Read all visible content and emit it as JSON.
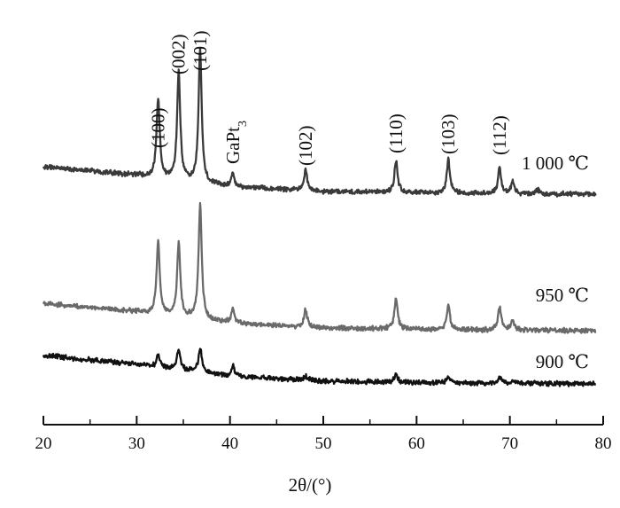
{
  "chart_data": {
    "type": "line",
    "xlabel": "2θ/(°)",
    "xlim": [
      20,
      80
    ],
    "x_ticks": [
      "20",
      "30",
      "40",
      "50",
      "60",
      "70",
      "80"
    ],
    "y_axis_visible": false,
    "baseline_relative_intensity": [
      [
        20,
        1.0
      ],
      [
        30,
        0.82
      ],
      [
        40,
        0.58
      ],
      [
        50,
        0.48
      ],
      [
        60,
        0.45
      ],
      [
        70,
        0.43
      ],
      [
        80,
        0.42
      ]
    ],
    "series": [
      {
        "name": "1 000 ℃",
        "color": "#3a3a3a",
        "peaks": [
          {
            "x": 32.3,
            "height": 90
          },
          {
            "x": 34.5,
            "height": 122
          },
          {
            "x": 36.8,
            "height": 150
          },
          {
            "x": 40.3,
            "height": 14
          },
          {
            "x": 48.1,
            "height": 22
          },
          {
            "x": 57.8,
            "height": 36
          },
          {
            "x": 63.4,
            "height": 38
          },
          {
            "x": 68.9,
            "height": 28
          },
          {
            "x": 70.3,
            "height": 13
          },
          {
            "x": 73.0,
            "height": 5
          }
        ]
      },
      {
        "name": "950 ℃",
        "color": "#6a6a6a",
        "peaks": [
          {
            "x": 32.3,
            "height": 82
          },
          {
            "x": 34.5,
            "height": 82
          },
          {
            "x": 36.8,
            "height": 130
          },
          {
            "x": 40.3,
            "height": 16
          },
          {
            "x": 48.1,
            "height": 20
          },
          {
            "x": 57.8,
            "height": 35
          },
          {
            "x": 63.4,
            "height": 28
          },
          {
            "x": 68.9,
            "height": 26
          },
          {
            "x": 70.3,
            "height": 12
          }
        ]
      },
      {
        "name": "900 ℃",
        "color": "#111111",
        "peaks": [
          {
            "x": 32.3,
            "height": 14
          },
          {
            "x": 34.5,
            "height": 24
          },
          {
            "x": 36.8,
            "height": 28
          },
          {
            "x": 40.3,
            "height": 12
          },
          {
            "x": 48.1,
            "height": 5
          },
          {
            "x": 57.8,
            "height": 10
          },
          {
            "x": 63.4,
            "height": 7
          },
          {
            "x": 68.9,
            "height": 6
          },
          {
            "x": 70.3,
            "height": 3
          }
        ]
      }
    ],
    "annotations": [
      {
        "text": "(100)",
        "x": 32.3
      },
      {
        "text": "(002)",
        "x": 34.5
      },
      {
        "text": "(101)",
        "x": 36.8
      },
      {
        "text": "GaPt",
        "sub": "3",
        "x": 40.3
      },
      {
        "text": "(102)",
        "x": 48.1
      },
      {
        "text": "(110)",
        "x": 57.8
      },
      {
        "text": "(103)",
        "x": 63.4
      },
      {
        "text": "(112)",
        "x": 68.9
      }
    ]
  }
}
